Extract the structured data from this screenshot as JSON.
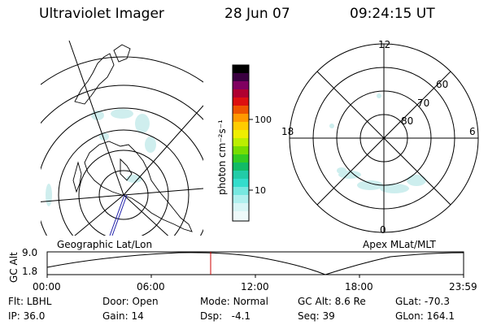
{
  "header": {
    "title": "Ultraviolet Imager",
    "date": "28 Jun 07",
    "time": "09:24:15 UT"
  },
  "colorbar": {
    "unit_label": "photon cm⁻²s⁻¹",
    "ticks": [
      "100",
      "10"
    ]
  },
  "polar": {
    "mlt_labels": {
      "top": "12",
      "left": "18",
      "right": "6",
      "bottom": "0"
    },
    "lat_labels": [
      "60",
      "70",
      "80"
    ]
  },
  "map_labels": {
    "left": "Geographic Lat/Lon",
    "right": "Apex MLat/MLT"
  },
  "altitude_plot": {
    "y_label": "GC Alt",
    "y_ticks": [
      "9.0",
      "1.8"
    ],
    "x_ticks": [
      "00:00",
      "06:00",
      "12:00",
      "18:00",
      "23:59"
    ]
  },
  "info": {
    "row1": [
      {
        "key": "Flt:",
        "value": "LBHL"
      },
      {
        "key": "Door:",
        "value": "Open"
      },
      {
        "key": "Mode:",
        "value": "Normal"
      },
      {
        "key": "GC Alt:",
        "value": "8.6 Re"
      },
      {
        "key": "GLat:",
        "value": "-70.3"
      }
    ],
    "row2": [
      {
        "key": "IP:",
        "value": "36.0"
      },
      {
        "key": "Gain:",
        "value": "14"
      },
      {
        "key": "Dsp:",
        "value": "-4.1"
      },
      {
        "key": "Seq:",
        "value": "39"
      },
      {
        "key": "GLon:",
        "value": "164.1"
      }
    ]
  },
  "colors": {
    "aurora": "#cdeeee",
    "marker": "#cc0000",
    "track": "#2222aa"
  }
}
